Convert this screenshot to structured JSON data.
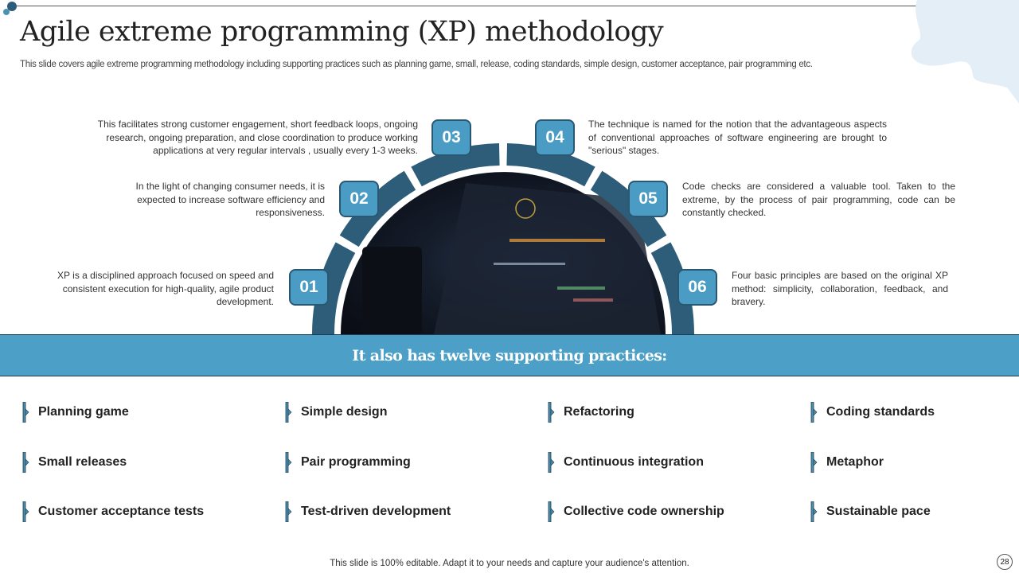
{
  "header": {
    "title": "Agile extreme programming (XP) methodology",
    "subtitle": "This slide covers agile extreme programming methodology including supporting practices such as planning game, small, release, coding standards, simple design, customer acceptance, pair programming etc."
  },
  "steps": [
    {
      "number": "01",
      "text": "XP is a disciplined approach focused on speed and consistent execution for high-quality, agile product development."
    },
    {
      "number": "02",
      "text": "In the light of changing consumer needs, it is expected to increase software efficiency and responsiveness."
    },
    {
      "number": "03",
      "text": "This facilitates strong customer engagement, short feedback loops, ongoing research, ongoing preparation, and close coordination to produce working applications at very regular intervals , usually every 1-3 weeks."
    },
    {
      "number": "04",
      "text": "The technique is named for the notion that the advantageous aspects of conventional approaches of software engineering are brought to \"serious\" stages."
    },
    {
      "number": "05",
      "text": "Code checks are considered a valuable tool. Taken to the extreme, by the process of pair programming, code can be constantly checked."
    },
    {
      "number": "06",
      "text": "Four basic principles are based on the original XP method: simplicity, collaboration, feedback, and bravery."
    }
  ],
  "banner": {
    "text": "It also has twelve supporting practices:"
  },
  "practices": [
    "Planning game",
    "Simple design",
    "Refactoring",
    "Coding standards",
    "Small releases",
    "Pair programming",
    "Continuous integration",
    "Metaphor",
    "Customer acceptance tests",
    "Test-driven development",
    "Collective code ownership",
    "Sustainable pace"
  ],
  "footer": {
    "text": "This slide is 100% editable. Adapt it to your needs and capture your audience's attention.",
    "page_number": "28"
  },
  "colors": {
    "accent": "#4c9fc6",
    "ring": "#2d5d78",
    "dark": "#1e3c4e",
    "blob": "#e3eef7"
  }
}
